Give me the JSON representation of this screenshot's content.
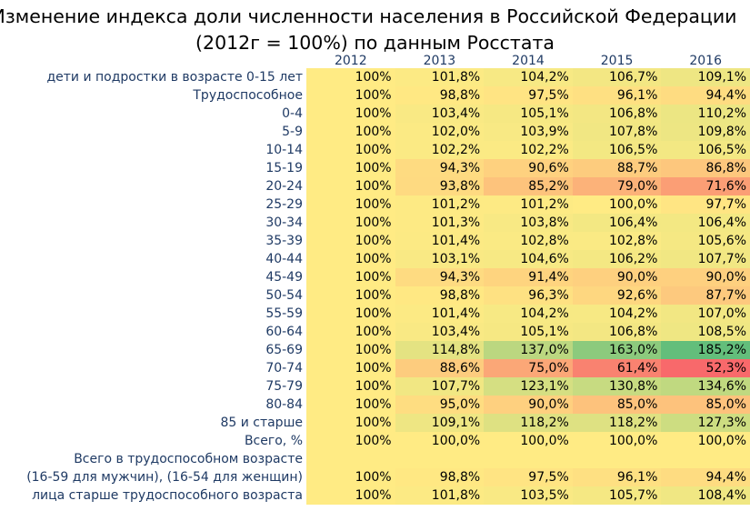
{
  "title_line1": "Изменение индекса доли численности населения в Российской Федерации",
  "title_line2": "(2012г = 100%) по данным Росстата",
  "chart_data": {
    "type": "table",
    "columns": [
      "2012",
      "2013",
      "2014",
      "2015",
      "2016"
    ],
    "rows": [
      {
        "label": "дети и подростки в возрасте 0-15 лет",
        "values": [
          100,
          101.8,
          104.2,
          106.7,
          109.1
        ],
        "display": [
          "100%",
          "101,8%",
          "104,2%",
          "106,7%",
          "109,1%"
        ]
      },
      {
        "label": "Трудоспособное",
        "values": [
          100,
          98.8,
          97.5,
          96.1,
          94.4
        ],
        "display": [
          "100%",
          "98,8%",
          "97,5%",
          "96,1%",
          "94,4%"
        ]
      },
      {
        "label": "0-4",
        "values": [
          100,
          103.4,
          105.1,
          106.8,
          110.2
        ],
        "display": [
          "100%",
          "103,4%",
          "105,1%",
          "106,8%",
          "110,2%"
        ]
      },
      {
        "label": "5-9",
        "values": [
          100,
          102.0,
          103.9,
          107.8,
          109.8
        ],
        "display": [
          "100%",
          "102,0%",
          "103,9%",
          "107,8%",
          "109,8%"
        ]
      },
      {
        "label": "10-14",
        "values": [
          100,
          102.2,
          102.2,
          106.5,
          106.5
        ],
        "display": [
          "100%",
          "102,2%",
          "102,2%",
          "106,5%",
          "106,5%"
        ]
      },
      {
        "label": "15-19",
        "values": [
          100,
          94.3,
          90.6,
          88.7,
          86.8
        ],
        "display": [
          "100%",
          "94,3%",
          "90,6%",
          "88,7%",
          "86,8%"
        ]
      },
      {
        "label": "20-24",
        "values": [
          100,
          93.8,
          85.2,
          79.0,
          71.6
        ],
        "display": [
          "100%",
          "93,8%",
          "85,2%",
          "79,0%",
          "71,6%"
        ]
      },
      {
        "label": "25-29",
        "values": [
          100,
          101.2,
          101.2,
          100.0,
          97.7
        ],
        "display": [
          "100%",
          "101,2%",
          "101,2%",
          "100,0%",
          "97,7%"
        ]
      },
      {
        "label": "30-34",
        "values": [
          100,
          101.3,
          103.8,
          106.4,
          106.4
        ],
        "display": [
          "100%",
          "101,3%",
          "103,8%",
          "106,4%",
          "106,4%"
        ]
      },
      {
        "label": "35-39",
        "values": [
          100,
          101.4,
          102.8,
          102.8,
          105.6
        ],
        "display": [
          "100%",
          "101,4%",
          "102,8%",
          "102,8%",
          "105,6%"
        ]
      },
      {
        "label": "40-44",
        "values": [
          100,
          103.1,
          104.6,
          106.2,
          107.7
        ],
        "display": [
          "100%",
          "103,1%",
          "104,6%",
          "106,2%",
          "107,7%"
        ]
      },
      {
        "label": "45-49",
        "values": [
          100,
          94.3,
          91.4,
          90.0,
          90.0
        ],
        "display": [
          "100%",
          "94,3%",
          "91,4%",
          "90,0%",
          "90,0%"
        ]
      },
      {
        "label": "50-54",
        "values": [
          100,
          98.8,
          96.3,
          92.6,
          87.7
        ],
        "display": [
          "100%",
          "98,8%",
          "96,3%",
          "92,6%",
          "87,7%"
        ]
      },
      {
        "label": "55-59",
        "values": [
          100,
          101.4,
          104.2,
          104.2,
          107.0
        ],
        "display": [
          "100%",
          "101,4%",
          "104,2%",
          "104,2%",
          "107,0%"
        ]
      },
      {
        "label": "60-64",
        "values": [
          100,
          103.4,
          105.1,
          106.8,
          108.5
        ],
        "display": [
          "100%",
          "103,4%",
          "105,1%",
          "106,8%",
          "108,5%"
        ]
      },
      {
        "label": "65-69",
        "values": [
          100,
          114.8,
          137.0,
          163.0,
          185.2
        ],
        "display": [
          "100%",
          "114,8%",
          "137,0%",
          "163,0%",
          "185,2%"
        ]
      },
      {
        "label": "70-74",
        "values": [
          100,
          88.6,
          75.0,
          61.4,
          52.3
        ],
        "display": [
          "100%",
          "88,6%",
          "75,0%",
          "61,4%",
          "52,3%"
        ]
      },
      {
        "label": "75-79",
        "values": [
          100,
          107.7,
          123.1,
          130.8,
          134.6
        ],
        "display": [
          "100%",
          "107,7%",
          "123,1%",
          "130,8%",
          "134,6%"
        ]
      },
      {
        "label": "80-84",
        "values": [
          100,
          95.0,
          90.0,
          85.0,
          85.0
        ],
        "display": [
          "100%",
          "95,0%",
          "90,0%",
          "85,0%",
          "85,0%"
        ]
      },
      {
        "label": "85 и старше",
        "values": [
          100,
          109.1,
          118.2,
          118.2,
          127.3
        ],
        "display": [
          "100%",
          "109,1%",
          "118,2%",
          "118,2%",
          "127,3%"
        ]
      },
      {
        "label": "Всего, %",
        "values": [
          100,
          100.0,
          100.0,
          100.0,
          100.0
        ],
        "display": [
          "100%",
          "100,0%",
          "100,0%",
          "100,0%",
          "100,0%"
        ]
      },
      {
        "label": "Всего в трудоспособном возрасте",
        "values": [],
        "display": []
      },
      {
        "label": "(16-59 для мужчин), (16-54 для женщин)",
        "values": [
          100,
          98.8,
          97.5,
          96.1,
          94.4
        ],
        "display": [
          "100%",
          "98,8%",
          "97,5%",
          "96,1%",
          "94,4%"
        ]
      },
      {
        "label": "лица старше трудоспособного возраста",
        "values": [
          100,
          101.8,
          103.5,
          105.7,
          108.4
        ],
        "display": [
          "100%",
          "101,8%",
          "103,5%",
          "105,7%",
          "108,4%"
        ]
      }
    ],
    "color_scale": {
      "low": "#f8696b",
      "mid": "#ffeb84",
      "high": "#63be7b",
      "min_value": 52.3,
      "mid_value": 100,
      "max_value": 185.2
    }
  }
}
